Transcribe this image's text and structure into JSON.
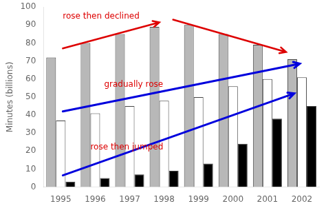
{
  "chart_data": {
    "type": "bar",
    "categories": [
      "1995",
      "1996",
      "1997",
      "1998",
      "1999",
      "2000",
      "2001",
      "2002"
    ],
    "series": [
      {
        "color": "#b8b8b8",
        "values": [
          72,
          80,
          85,
          89,
          90,
          85,
          79,
          71
        ]
      },
      {
        "color": "#ffffff",
        "values": [
          37,
          41,
          45,
          48,
          50,
          56,
          60,
          61
        ]
      },
      {
        "color": "#000000",
        "values": [
          3,
          5,
          7,
          9,
          13,
          24,
          38,
          45
        ]
      }
    ],
    "ylabel": "Minutes (billions)",
    "ylim": [
      0,
      100
    ],
    "yticks": [
      0,
      10,
      20,
      30,
      40,
      50,
      60,
      70,
      80,
      90,
      100
    ],
    "grid": false,
    "annotations": [
      {
        "text": "rose then declined",
        "color": "#dd0000",
        "arrow_color": "#dd0000"
      },
      {
        "text": "gradually rose",
        "color": "#dd0000",
        "arrow_color": "#0000dd"
      },
      {
        "text": "rose then jumped",
        "color": "#dd0000",
        "arrow_color": "#0000dd"
      }
    ]
  }
}
